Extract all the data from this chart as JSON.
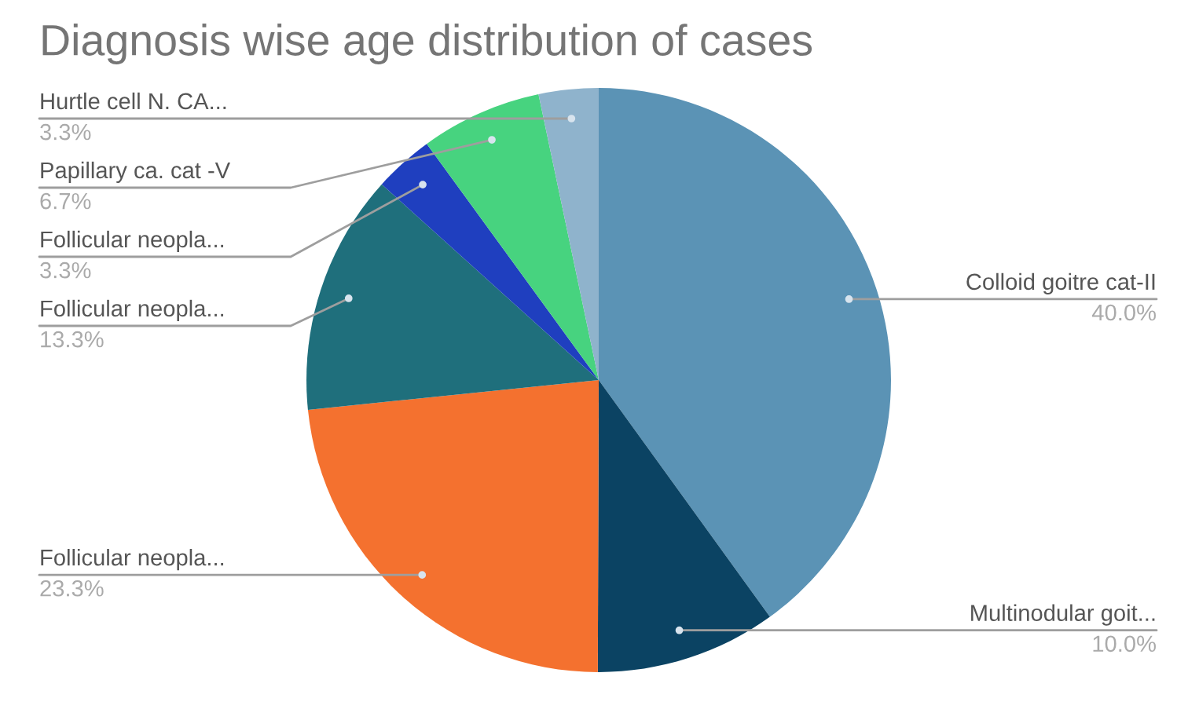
{
  "chart_data": {
    "type": "pie",
    "title": "Diagnosis wise age distribution of cases",
    "categories": [
      "Colloid goitre cat-II",
      "Multinodular goit...",
      "Follicular neopla...",
      "Follicular neopla...",
      "Follicular neopla...",
      "Papillary ca. cat -V",
      "Hurtle cell N. CA..."
    ],
    "values": [
      40.0,
      10.0,
      23.3,
      13.3,
      3.3,
      6.7,
      3.3
    ],
    "value_labels": [
      "40.0%",
      "10.0%",
      "23.3%",
      "13.3%",
      "3.3%",
      "6.7%",
      "3.3%"
    ],
    "colors": [
      "#5b93b5",
      "#0b4363",
      "#f4712f",
      "#1f6f7c",
      "#1f3fbf",
      "#47d37f",
      "#8fb3cc"
    ],
    "legend": false
  }
}
